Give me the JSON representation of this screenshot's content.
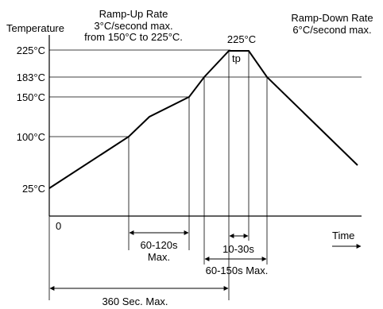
{
  "colors": {
    "line": "#000000",
    "background": "#ffffff"
  },
  "labels": {
    "y_axis_title": "Temperature",
    "x_axis_title": "Time",
    "origin": "0",
    "ramp_up": {
      "line1": "Ramp-Up Rate",
      "line2": "3°C/second max.",
      "line3": "from 150°C to 225°C."
    },
    "ramp_down": {
      "line1": "Ramp-Down Rate",
      "line2": "6°C/second max."
    },
    "peak_label": "225°C",
    "tp_label": "tp"
  },
  "temperature_levels": [
    {
      "label": "225°C",
      "value": 225
    },
    {
      "label": "183°C",
      "value": 183
    },
    {
      "label": "150°C",
      "value": 150
    },
    {
      "label": "100°C",
      "value": 100
    },
    {
      "label": "25°C",
      "value": 25
    }
  ],
  "intervals": {
    "preheat": {
      "line1": "60-120s",
      "line2": "Max."
    },
    "time_at_peak": "10-30s",
    "above_liquidus": "60-150s Max.",
    "total": "360 Sec. Max."
  }
}
